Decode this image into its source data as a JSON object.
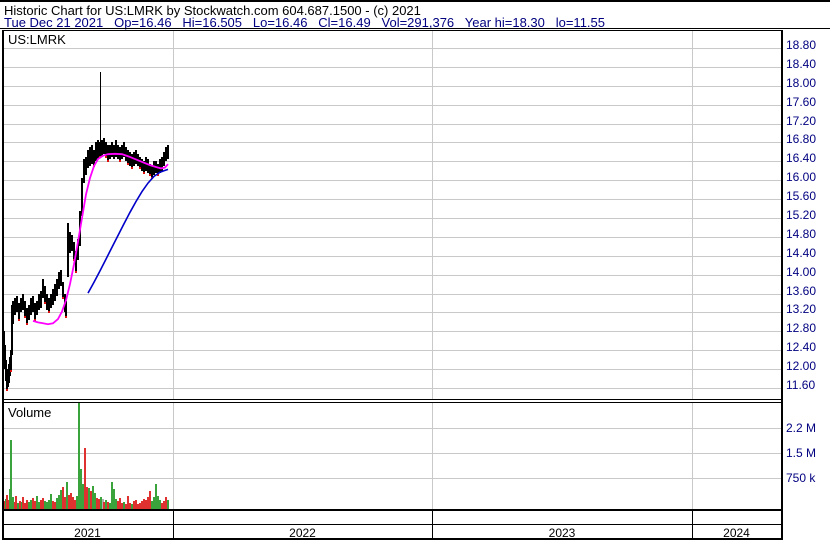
{
  "header": {
    "line1": "Historic Chart for US:LMRK by Stockwatch.com 604.687.1500 - (c) 2021",
    "line2": "Tue Dec 21 2021   Op=16.46   Hi=16.505   Lo=16.46   Cl=16.49   Vol=291,376   Year hi=18.30   lo=11.55"
  },
  "price_pane": {
    "symbol_label": "US:LMRK"
  },
  "volume_pane": {
    "label": "Volume"
  },
  "colors": {
    "axis_text": "#000080",
    "grid": "#c9c9c9",
    "bar": "#000000",
    "down_tick": "#e01010",
    "ma_fast": "#ff00ff",
    "ma_slow": "#0000c8",
    "vol_up": "#3ba33b",
    "vol_down": "#e03131",
    "vol_neutral": "#b0b0b0"
  },
  "chart_data": {
    "type": "ohlc+volume",
    "title": "Historic Chart for US:LMRK",
    "symbol": "US:LMRK",
    "price_axis": {
      "labels": [
        "18.80",
        "18.40",
        "18.00",
        "17.60",
        "17.20",
        "16.80",
        "16.40",
        "16.00",
        "15.60",
        "15.20",
        "14.80",
        "14.40",
        "14.00",
        "13.60",
        "13.20",
        "12.80",
        "12.40",
        "12.00",
        "11.60"
      ],
      "top_value": 18.8,
      "step": 0.4,
      "ylim": [
        11.4,
        19.15
      ],
      "grid": true,
      "position": "right"
    },
    "volume_axis": {
      "labels": [
        "2.2 M",
        "1.5 M",
        "750 k"
      ],
      "values_k": [
        2200,
        1500,
        750
      ]
    },
    "x_axis": {
      "years": [
        "2021",
        "2022",
        "2023",
        "2024"
      ]
    },
    "bars": [
      [
        3,
        12.35,
        12.8
      ],
      [
        4,
        12.0,
        12.5
      ],
      [
        5,
        11.75,
        12.2
      ],
      [
        6,
        11.55,
        11.95
      ],
      [
        7,
        11.62,
        12.0
      ],
      [
        8,
        11.7,
        12.1
      ],
      [
        9,
        11.85,
        12.25
      ],
      [
        10,
        11.95,
        12.4
      ],
      [
        11,
        12.3,
        13.35
      ],
      [
        12,
        12.95,
        13.45
      ],
      [
        14,
        13.15,
        13.5
      ],
      [
        16,
        13.2,
        13.55
      ],
      [
        18,
        13.05,
        13.4
      ],
      [
        20,
        13.2,
        13.5
      ],
      [
        22,
        13.25,
        13.6
      ],
      [
        24,
        13.1,
        13.45
      ],
      [
        26,
        12.95,
        13.3
      ],
      [
        28,
        13.05,
        13.35
      ],
      [
        30,
        13.15,
        13.5
      ],
      [
        32,
        13.2,
        13.55
      ],
      [
        34,
        13.05,
        13.4
      ],
      [
        36,
        13.15,
        13.45
      ],
      [
        38,
        13.25,
        13.6
      ],
      [
        40,
        13.3,
        13.65
      ],
      [
        42,
        13.5,
        13.9
      ],
      [
        44,
        13.4,
        13.75
      ],
      [
        46,
        13.25,
        13.6
      ],
      [
        48,
        13.2,
        13.5
      ],
      [
        50,
        13.3,
        13.6
      ],
      [
        52,
        13.35,
        13.7
      ],
      [
        54,
        13.45,
        13.8
      ],
      [
        56,
        13.55,
        13.9
      ],
      [
        58,
        13.7,
        14.05
      ],
      [
        60,
        13.75,
        14.1
      ],
      [
        62,
        13.5,
        13.85
      ],
      [
        64,
        13.2,
        13.6
      ],
      [
        65,
        13.1,
        13.45
      ],
      [
        67,
        13.95,
        15.1
      ],
      [
        69,
        14.45,
        14.9
      ],
      [
        71,
        14.5,
        14.85
      ],
      [
        73,
        14.3,
        14.7
      ],
      [
        75,
        14.05,
        14.5
      ],
      [
        77,
        14.3,
        14.75
      ],
      [
        79,
        14.6,
        15.35
      ],
      [
        81,
        15.25,
        16.05
      ],
      [
        83,
        15.95,
        16.45
      ],
      [
        85,
        16.1,
        16.5
      ],
      [
        87,
        16.25,
        16.65
      ],
      [
        89,
        16.3,
        16.7
      ],
      [
        91,
        16.35,
        16.75
      ],
      [
        93,
        16.3,
        16.65
      ],
      [
        95,
        16.4,
        16.8
      ],
      [
        97,
        16.45,
        16.85
      ],
      [
        99,
        16.5,
        16.8
      ],
      [
        100,
        16.55,
        18.3
      ],
      [
        101,
        16.5,
        16.85
      ],
      [
        103,
        16.55,
        16.9
      ],
      [
        105,
        16.5,
        16.8
      ],
      [
        107,
        16.4,
        16.75
      ],
      [
        109,
        16.45,
        16.75
      ],
      [
        111,
        16.5,
        16.8
      ],
      [
        113,
        16.45,
        16.75
      ],
      [
        115,
        16.5,
        16.85
      ],
      [
        117,
        16.45,
        16.75
      ],
      [
        119,
        16.4,
        16.7
      ],
      [
        121,
        16.45,
        16.75
      ],
      [
        123,
        16.5,
        16.8
      ],
      [
        125,
        16.4,
        16.7
      ],
      [
        127,
        16.35,
        16.65
      ],
      [
        129,
        16.3,
        16.6
      ],
      [
        131,
        16.25,
        16.55
      ],
      [
        133,
        16.3,
        16.6
      ],
      [
        135,
        16.35,
        16.65
      ],
      [
        137,
        16.3,
        16.55
      ],
      [
        139,
        16.25,
        16.5
      ],
      [
        141,
        16.2,
        16.45
      ],
      [
        143,
        16.15,
        16.4
      ],
      [
        145,
        16.2,
        16.5
      ],
      [
        147,
        16.15,
        16.45
      ],
      [
        149,
        16.1,
        16.35
      ],
      [
        151,
        16.05,
        16.3
      ],
      [
        153,
        16.1,
        16.4
      ],
      [
        155,
        16.15,
        16.4
      ],
      [
        157,
        16.1,
        16.35
      ],
      [
        159,
        16.15,
        16.45
      ],
      [
        161,
        16.2,
        16.5
      ],
      [
        163,
        16.3,
        16.6
      ],
      [
        165,
        16.4,
        16.7
      ],
      [
        167,
        16.45,
        16.75
      ]
    ],
    "down_ticks": [
      [
        6,
        11.55
      ],
      [
        10,
        11.95
      ],
      [
        18,
        13.05
      ],
      [
        24,
        13.1
      ],
      [
        26,
        12.95
      ],
      [
        34,
        13.05
      ],
      [
        44,
        13.4
      ],
      [
        48,
        13.2
      ],
      [
        62,
        13.5
      ],
      [
        65,
        13.1
      ],
      [
        73,
        14.3
      ],
      [
        75,
        14.05
      ],
      [
        93,
        16.3
      ],
      [
        99,
        16.5
      ],
      [
        105,
        16.5
      ],
      [
        107,
        16.4
      ],
      [
        119,
        16.4
      ],
      [
        127,
        16.35
      ],
      [
        131,
        16.25
      ],
      [
        139,
        16.25
      ],
      [
        143,
        16.15
      ],
      [
        149,
        16.1
      ],
      [
        151,
        16.05
      ],
      [
        157,
        16.1
      ]
    ],
    "ma_fast": {
      "name": "fast moving average",
      "points": [
        [
          33,
          13.02
        ],
        [
          38,
          12.99
        ],
        [
          43,
          12.97
        ],
        [
          48,
          12.95
        ],
        [
          53,
          12.97
        ],
        [
          58,
          13.06
        ],
        [
          62,
          13.22
        ],
        [
          66,
          13.46
        ],
        [
          70,
          13.8
        ],
        [
          74,
          14.22
        ],
        [
          78,
          14.7
        ],
        [
          82,
          15.2
        ],
        [
          86,
          15.7
        ],
        [
          90,
          16.05
        ],
        [
          94,
          16.3
        ],
        [
          98,
          16.45
        ],
        [
          103,
          16.52
        ],
        [
          108,
          16.55
        ],
        [
          115,
          16.56
        ],
        [
          122,
          16.55
        ],
        [
          129,
          16.5
        ],
        [
          136,
          16.44
        ],
        [
          143,
          16.38
        ],
        [
          150,
          16.32
        ],
        [
          156,
          16.28
        ],
        [
          161,
          16.25
        ],
        [
          165,
          16.27
        ],
        [
          168,
          16.34
        ]
      ]
    },
    "ma_slow": {
      "name": "slow moving average",
      "points": [
        [
          88,
          13.61
        ],
        [
          94,
          13.84
        ],
        [
          100,
          14.08
        ],
        [
          106,
          14.33
        ],
        [
          112,
          14.58
        ],
        [
          118,
          14.83
        ],
        [
          124,
          15.08
        ],
        [
          130,
          15.32
        ],
        [
          136,
          15.55
        ],
        [
          142,
          15.76
        ],
        [
          148,
          15.94
        ],
        [
          154,
          16.08
        ],
        [
          160,
          16.17
        ],
        [
          164,
          16.2
        ],
        [
          168,
          16.23
        ]
      ]
    },
    "volume_bars_k": [
      [
        3,
        216,
        "r"
      ],
      [
        5,
        270,
        "g"
      ],
      [
        6,
        378,
        "r"
      ],
      [
        8,
        243,
        "r"
      ],
      [
        9,
        540,
        "g"
      ],
      [
        10,
        1863,
        "g"
      ],
      [
        12,
        324,
        "g"
      ],
      [
        14,
        189,
        "r"
      ],
      [
        15,
        351,
        "r"
      ],
      [
        17,
        162,
        "g"
      ],
      [
        19,
        216,
        "r"
      ],
      [
        21,
        189,
        "g"
      ],
      [
        22,
        324,
        "r"
      ],
      [
        24,
        162,
        "r"
      ],
      [
        26,
        243,
        "r"
      ],
      [
        28,
        189,
        "g"
      ],
      [
        30,
        243,
        "g"
      ],
      [
        32,
        297,
        "r"
      ],
      [
        34,
        216,
        "r"
      ],
      [
        36,
        351,
        "g"
      ],
      [
        38,
        189,
        "g"
      ],
      [
        40,
        243,
        "r"
      ],
      [
        42,
        297,
        "r"
      ],
      [
        44,
        216,
        "g"
      ],
      [
        46,
        189,
        "g"
      ],
      [
        48,
        243,
        "g"
      ],
      [
        50,
        405,
        "g"
      ],
      [
        52,
        216,
        "r"
      ],
      [
        54,
        189,
        "r"
      ],
      [
        56,
        297,
        "g"
      ],
      [
        58,
        378,
        "g"
      ],
      [
        60,
        513,
        "g"
      ],
      [
        62,
        594,
        "r"
      ],
      [
        64,
        324,
        "r"
      ],
      [
        66,
        729,
        "g"
      ],
      [
        68,
        378,
        "r"
      ],
      [
        70,
        432,
        "r"
      ],
      [
        72,
        324,
        "r"
      ],
      [
        74,
        243,
        "r"
      ],
      [
        76,
        351,
        "g"
      ],
      [
        78,
        2862,
        "g"
      ],
      [
        80,
        1080,
        "g"
      ],
      [
        82,
        675,
        "g"
      ],
      [
        84,
        1647,
        "r"
      ],
      [
        86,
        594,
        "r"
      ],
      [
        88,
        567,
        "g"
      ],
      [
        90,
        486,
        "r"
      ],
      [
        92,
        621,
        "g"
      ],
      [
        94,
        432,
        "g"
      ],
      [
        96,
        297,
        "r"
      ],
      [
        98,
        270,
        "r"
      ],
      [
        100,
        324,
        "g"
      ],
      [
        102,
        270,
        "y"
      ],
      [
        103,
        189,
        "r"
      ],
      [
        105,
        243,
        "g"
      ],
      [
        107,
        189,
        "r"
      ],
      [
        109,
        162,
        "g"
      ],
      [
        111,
        729,
        "g"
      ],
      [
        113,
        540,
        "g"
      ],
      [
        115,
        270,
        "g"
      ],
      [
        117,
        216,
        "r"
      ],
      [
        119,
        297,
        "r"
      ],
      [
        121,
        162,
        "r"
      ],
      [
        123,
        189,
        "g"
      ],
      [
        125,
        135,
        "r"
      ],
      [
        127,
        351,
        "r"
      ],
      [
        129,
        162,
        "r"
      ],
      [
        131,
        135,
        "g"
      ],
      [
        133,
        216,
        "r"
      ],
      [
        135,
        243,
        "r"
      ],
      [
        137,
        135,
        "r"
      ],
      [
        139,
        162,
        "r"
      ],
      [
        141,
        216,
        "r"
      ],
      [
        143,
        270,
        "r"
      ],
      [
        145,
        243,
        "r"
      ],
      [
        147,
        324,
        "r"
      ],
      [
        149,
        486,
        "r"
      ],
      [
        151,
        216,
        "g"
      ],
      [
        153,
        324,
        "g"
      ],
      [
        155,
        675,
        "g"
      ],
      [
        157,
        351,
        "g"
      ],
      [
        159,
        243,
        "g"
      ],
      [
        161,
        162,
        "r"
      ],
      [
        163,
        216,
        "r"
      ],
      [
        165,
        324,
        "r"
      ],
      [
        167,
        243,
        "g"
      ]
    ]
  }
}
